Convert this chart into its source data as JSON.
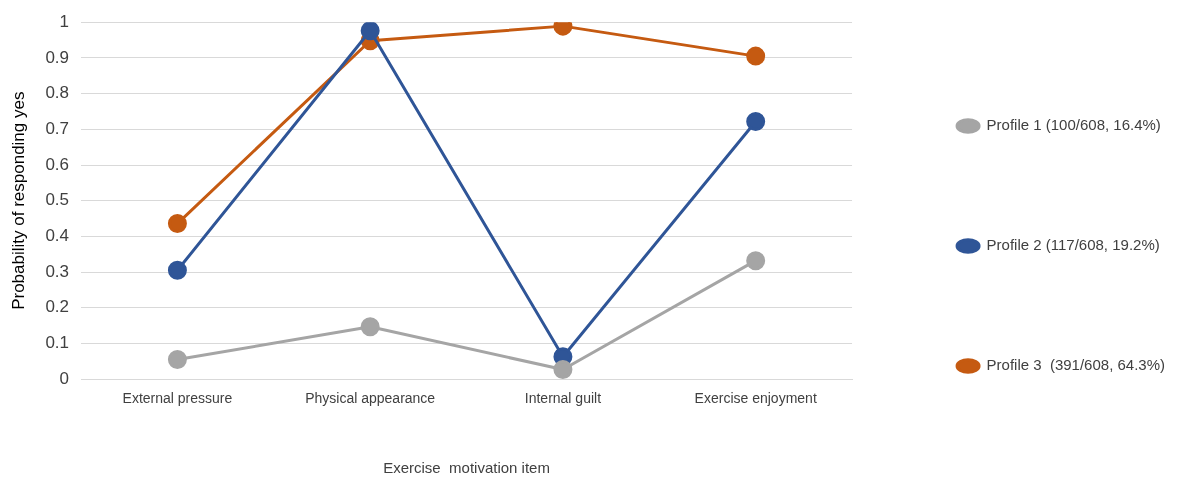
{
  "chart_data": {
    "type": "line",
    "xlabel": "Exercise  motivation item",
    "ylabel": "Probability of responding yes",
    "categories": [
      "External pressure",
      "Physical appearance",
      "Internal guilt",
      "Exercise enjoyment"
    ],
    "series": [
      {
        "name": "Profile 1 (100/608, 16.4%)",
        "color": "#a5a5a5",
        "values": [
          0.055,
          0.147,
          0.027,
          0.332
        ]
      },
      {
        "name": "Profile 2 (117/608, 19.2%)",
        "color": "#2f5597",
        "values": [
          0.305,
          0.976,
          0.063,
          0.722
        ]
      },
      {
        "name": "Profile 3  (391/608, 64.3%)",
        "color": "#c55a11",
        "values": [
          0.436,
          0.948,
          0.989,
          0.905
        ]
      }
    ],
    "ylim": [
      0,
      1
    ],
    "yticks": [
      0,
      0.1,
      0.2,
      0.3,
      0.4,
      0.5,
      0.6,
      0.7,
      0.8,
      0.9,
      1
    ],
    "grid": "y",
    "legend": "right",
    "marker": "circle",
    "line_style": "solid"
  }
}
